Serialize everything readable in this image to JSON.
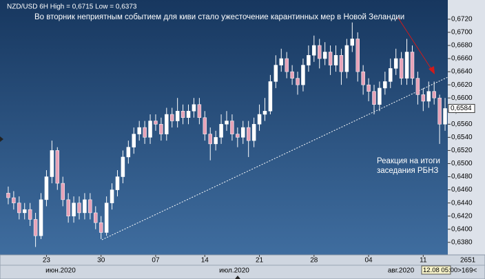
{
  "chart_data": {
    "type": "candlestick",
    "title": "NZD/USD 6H High = 0,6715 Low = 0,6373",
    "annotations": [
      "Во вторник неприятным событием для киви стало ужесточение карантинных мер в Новой Зеландии",
      "Реакция на итоги",
      "заседания РБНЗ"
    ],
    "categories": [
      null,
      null,
      null,
      null,
      null,
      null,
      null,
      "23",
      null,
      null,
      null,
      null,
      null,
      null,
      null,
      null,
      null,
      "30",
      null,
      null,
      null,
      null,
      null,
      null,
      null,
      null,
      null,
      "07",
      null,
      null,
      null,
      null,
      null,
      null,
      null,
      null,
      "14",
      null,
      null,
      null,
      null,
      null,
      null,
      null,
      null,
      null,
      "21",
      null,
      null,
      null,
      null,
      null,
      null,
      null,
      null,
      null,
      "28",
      null,
      null,
      null,
      null,
      null,
      null,
      null,
      null,
      null,
      "04",
      null,
      null,
      null,
      null,
      null,
      null,
      null,
      null,
      null,
      "11",
      null,
      null,
      null,
      null
    ],
    "x_month_labels": [
      "июн.2020",
      "июл.2020",
      "авг.2020"
    ],
    "open": [
      0.6455,
      0.6448,
      0.644,
      0.6425,
      0.643,
      0.6415,
      0.639,
      0.6445,
      0.648,
      0.652,
      0.647,
      0.6445,
      0.642,
      0.644,
      0.6425,
      0.6445,
      0.6425,
      0.641,
      0.6395,
      0.644,
      0.646,
      0.648,
      0.651,
      0.6525,
      0.6545,
      0.6555,
      0.654,
      0.6565,
      0.656,
      0.6545,
      0.6575,
      0.6565,
      0.658,
      0.657,
      0.658,
      0.659,
      0.657,
      0.6545,
      0.653,
      0.654,
      0.656,
      0.6565,
      0.6545,
      0.654,
      0.6555,
      0.6535,
      0.656,
      0.6575,
      0.658,
      0.6625,
      0.665,
      0.666,
      0.664,
      0.663,
      0.662,
      0.665,
      0.6665,
      0.668,
      0.666,
      0.667,
      0.665,
      0.6665,
      0.664,
      0.668,
      0.669,
      0.664,
      0.662,
      0.661,
      0.659,
      0.6615,
      0.6625,
      0.6645,
      0.666,
      0.663,
      0.667,
      0.663,
      0.6605,
      0.6595,
      0.661,
      0.66,
      0.656
    ],
    "high": [
      0.6465,
      0.6458,
      0.645,
      0.644,
      0.644,
      0.6425,
      0.6455,
      0.649,
      0.6535,
      0.6525,
      0.648,
      0.6455,
      0.645,
      0.645,
      0.6455,
      0.6455,
      0.6435,
      0.642,
      0.645,
      0.647,
      0.649,
      0.652,
      0.6535,
      0.6555,
      0.6565,
      0.6565,
      0.6575,
      0.6575,
      0.657,
      0.6585,
      0.6585,
      0.66,
      0.659,
      0.659,
      0.66,
      0.66,
      0.658,
      0.6555,
      0.655,
      0.6575,
      0.658,
      0.6575,
      0.6555,
      0.6565,
      0.6565,
      0.657,
      0.659,
      0.66,
      0.6635,
      0.6665,
      0.6675,
      0.667,
      0.665,
      0.664,
      0.666,
      0.668,
      0.6695,
      0.669,
      0.6685,
      0.668,
      0.668,
      0.6675,
      0.669,
      0.6715,
      0.67,
      0.665,
      0.663,
      0.662,
      0.6625,
      0.664,
      0.666,
      0.6675,
      0.667,
      0.669,
      0.668,
      0.664,
      0.6615,
      0.6625,
      0.6625,
      0.6605,
      0.66
    ],
    "low": [
      0.6438,
      0.643,
      0.6415,
      0.6415,
      0.6405,
      0.6373,
      0.6385,
      0.6435,
      0.647,
      0.646,
      0.6435,
      0.641,
      0.641,
      0.6415,
      0.6415,
      0.6415,
      0.64,
      0.6385,
      0.639,
      0.643,
      0.645,
      0.647,
      0.65,
      0.6515,
      0.6535,
      0.653,
      0.653,
      0.655,
      0.6535,
      0.6535,
      0.6555,
      0.6555,
      0.656,
      0.656,
      0.657,
      0.656,
      0.6535,
      0.6505,
      0.652,
      0.653,
      0.655,
      0.6535,
      0.6525,
      0.653,
      0.651,
      0.6525,
      0.655,
      0.6565,
      0.6575,
      0.6615,
      0.664,
      0.663,
      0.662,
      0.6605,
      0.661,
      0.664,
      0.6655,
      0.6645,
      0.665,
      0.6635,
      0.664,
      0.662,
      0.663,
      0.667,
      0.6625,
      0.6605,
      0.6595,
      0.6575,
      0.658,
      0.6605,
      0.6615,
      0.6635,
      0.662,
      0.662,
      0.662,
      0.659,
      0.658,
      0.6585,
      0.659,
      0.653,
      0.655
    ],
    "close": [
      0.6448,
      0.644,
      0.6425,
      0.643,
      0.6415,
      0.639,
      0.6445,
      0.648,
      0.652,
      0.647,
      0.6445,
      0.642,
      0.644,
      0.6425,
      0.6445,
      0.6425,
      0.641,
      0.6395,
      0.644,
      0.646,
      0.648,
      0.651,
      0.6525,
      0.6545,
      0.6555,
      0.654,
      0.6565,
      0.656,
      0.6545,
      0.6575,
      0.6565,
      0.658,
      0.657,
      0.658,
      0.659,
      0.657,
      0.6545,
      0.653,
      0.654,
      0.656,
      0.6565,
      0.6545,
      0.654,
      0.6555,
      0.6535,
      0.656,
      0.6575,
      0.658,
      0.6625,
      0.665,
      0.666,
      0.664,
      0.663,
      0.662,
      0.665,
      0.6665,
      0.668,
      0.666,
      0.667,
      0.665,
      0.6665,
      0.664,
      0.668,
      0.669,
      0.664,
      0.662,
      0.661,
      0.659,
      0.6615,
      0.6625,
      0.6645,
      0.666,
      0.663,
      0.667,
      0.663,
      0.6605,
      0.6595,
      0.661,
      0.66,
      0.656,
      0.6584
    ],
    "up_color": "#ffffff",
    "down_color": "#e7a3b8",
    "last_price_label": "0,6584",
    "ylim": [
      0.6363,
      0.6744
    ],
    "yticks": [
      {
        "value": 0.638,
        "label": "0,6380"
      },
      {
        "value": 0.64,
        "label": "0,6400"
      },
      {
        "value": 0.642,
        "label": "0,6420"
      },
      {
        "value": 0.644,
        "label": "0,6440"
      },
      {
        "value": 0.646,
        "label": "0,6460"
      },
      {
        "value": 0.648,
        "label": "0,6480"
      },
      {
        "value": 0.65,
        "label": "0,6500"
      },
      {
        "value": 0.652,
        "label": "0,6520"
      },
      {
        "value": 0.654,
        "label": "0,6540"
      },
      {
        "value": 0.656,
        "label": "0,6560"
      },
      {
        "value": 0.658,
        "label": "0,6580"
      },
      {
        "value": 0.66,
        "label": "0,6600"
      },
      {
        "value": 0.662,
        "label": "0,6620"
      },
      {
        "value": 0.664,
        "label": "0,6640"
      },
      {
        "value": 0.666,
        "label": "0,6660"
      },
      {
        "value": 0.668,
        "label": "0,6680"
      },
      {
        "value": 0.67,
        "label": "0,6700"
      },
      {
        "value": 0.672,
        "label": "0,6720"
      }
    ],
    "status": {
      "cursor_time": "12.08 05:00",
      "count": "2651",
      "offset": ">169<"
    }
  }
}
